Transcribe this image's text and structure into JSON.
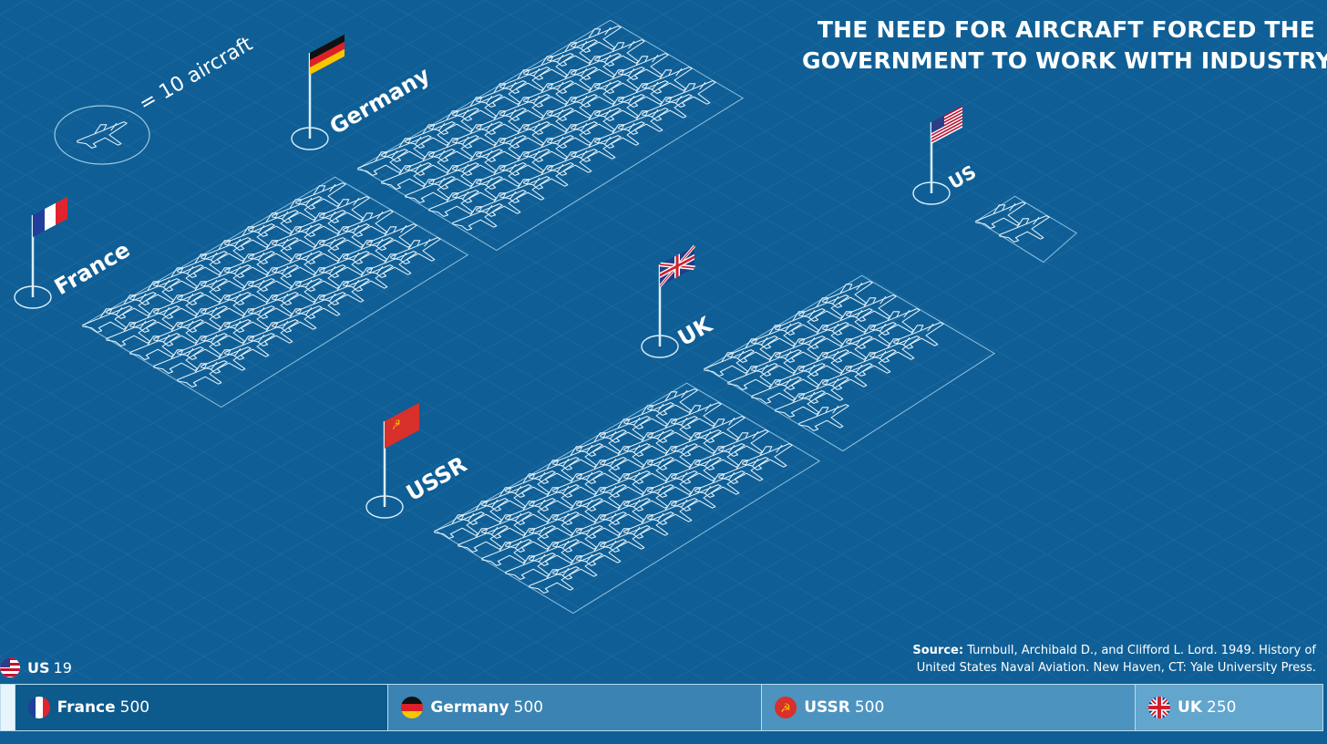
{
  "title": {
    "line1": "THE NEED FOR AIRCRAFT FORCED THE",
    "line2": "GOVERNMENT TO WORK WITH INDUSTRY"
  },
  "legend_key": "= 10 aircraft",
  "source": {
    "label": "Source:",
    "line1": "Turnbull, Archibald D., and Clifford L. Lord. 1949. History of",
    "line2": "United States Naval Aviation. New Haven, CT: Yale University Press."
  },
  "chart_data": {
    "type": "bar",
    "categories": [
      "US",
      "France",
      "Germany",
      "USSR",
      "UK"
    ],
    "values": [
      19,
      500,
      500,
      500,
      250
    ],
    "icon_unit": 10,
    "colors": {
      "background": "#0f5f96",
      "us": "#0a5a8f",
      "france": "#0d5a8c",
      "germany": "#3a83b2",
      "ussr": "#4d93bf",
      "uk": "#62a5cd"
    }
  },
  "bottom_bar": {
    "us": {
      "name": "US",
      "value": "19"
    },
    "france": {
      "name": "France",
      "value": "500"
    },
    "germany": {
      "name": "Germany",
      "value": "500"
    },
    "ussr": {
      "name": "USSR",
      "value": "500"
    },
    "uk": {
      "name": "UK",
      "value": "250"
    }
  },
  "country_labels": {
    "germany": "Germany",
    "france": "France",
    "uk": "UK",
    "us": "US",
    "ussr": "USSR"
  },
  "icons": {
    "aircraft": "jet-aircraft-icon",
    "flag_us": "us-flag-icon",
    "flag_fr": "france-flag-icon",
    "flag_de": "germany-flag-icon",
    "flag_su": "ussr-flag-icon",
    "flag_uk": "uk-flag-icon"
  }
}
